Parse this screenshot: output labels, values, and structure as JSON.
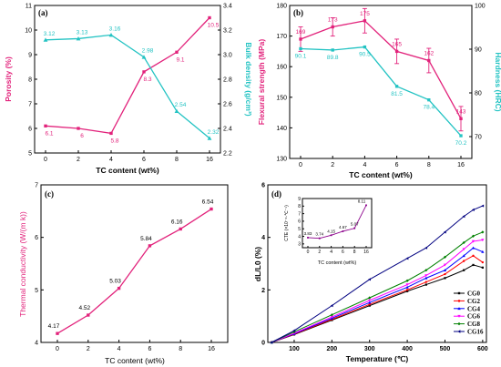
{
  "chart_data": [
    {
      "panel": "(a)",
      "type": "line",
      "categories": [
        "0",
        "2",
        "4",
        "6",
        "8",
        "16"
      ],
      "xlabel": "TC content (wt%)",
      "ylabel_left": "Porosity (%)",
      "ylabel_right": "Bulk density (g/cm³)",
      "ylim_left": [
        5,
        11
      ],
      "ylim_right": [
        2.2,
        3.4
      ],
      "yticks_left": [
        "5",
        "6",
        "7",
        "8",
        "9",
        "10",
        "11"
      ],
      "yticks_right": [
        "2.2",
        "2.4",
        "2.6",
        "2.8",
        "3.0",
        "3.2",
        "3.4"
      ],
      "series": [
        {
          "axis": "left",
          "color": "#e2227b",
          "marker": "square",
          "values": [
            6.1,
            6.0,
            5.8,
            8.3,
            9.1,
            10.5
          ],
          "labels": [
            "6.1",
            "6",
            "5.8",
            "8.3",
            "9.1",
            "10.5"
          ],
          "label_side": "below"
        },
        {
          "axis": "right",
          "color": "#23c3c3",
          "marker": "triangle",
          "values": [
            3.12,
            3.13,
            3.16,
            2.98,
            2.54,
            2.32
          ],
          "labels": [
            "3.12",
            "3.13",
            "3.16",
            "2.98",
            "2.54",
            "2.32"
          ],
          "label_side": "above"
        }
      ]
    },
    {
      "panel": "(b)",
      "type": "line",
      "categories": [
        "0",
        "2",
        "4",
        "6",
        "8",
        "16"
      ],
      "xlabel": "TC content (wt%)",
      "ylabel_left": "Flexural strength (MPa)",
      "ylabel_right": "Hardness (HRC)",
      "ylim_left": [
        130,
        180
      ],
      "ylim_right": [
        65,
        100
      ],
      "yticks_left": [
        "130",
        "140",
        "150",
        "160",
        "170",
        "180"
      ],
      "yticks_right": [
        "70",
        "80",
        "90",
        "100"
      ],
      "series": [
        {
          "axis": "left",
          "color": "#e2227b",
          "marker": "square",
          "values": [
            169,
            173,
            175,
            165,
            162,
            143
          ],
          "errors": [
            4,
            3,
            4,
            4,
            4,
            4
          ],
          "labels": [
            "169",
            "173",
            "175",
            "165",
            "162",
            "143"
          ],
          "label_side": "above"
        },
        {
          "axis": "right",
          "color": "#23c3c3",
          "marker": "square",
          "values": [
            90.1,
            89.8,
            90.5,
            81.5,
            78.4,
            70.2
          ],
          "labels": [
            "90.1",
            "89.8",
            "90.5",
            "81.5",
            "78.4",
            "70.2"
          ],
          "label_side": "below"
        }
      ]
    },
    {
      "panel": "(c)",
      "type": "line",
      "categories": [
        "0",
        "2",
        "4",
        "6",
        "8",
        "16"
      ],
      "xlabel": "TC content (wt%)",
      "ylabel": "Thermal conductivity (W/(m k))",
      "ylim": [
        4,
        7
      ],
      "yticks": [
        "4",
        "5",
        "6",
        "7"
      ],
      "series": [
        {
          "color": "#e2227b",
          "marker": "square",
          "values": [
            4.17,
            4.52,
            5.03,
            5.84,
            6.16,
            6.54
          ],
          "labels": [
            "4.17",
            "4.52",
            "5.03",
            "5.84",
            "6.16",
            "6.54"
          ],
          "label_side": "above"
        }
      ]
    },
    {
      "panel": "(d)",
      "type": "line",
      "xlabel": "Temperature (℃)",
      "ylabel": "dL/L0 (%)",
      "xlim": [
        30,
        610
      ],
      "ylim": [
        0,
        6
      ],
      "xticks": [
        100,
        200,
        300,
        400,
        500,
        600
      ],
      "yticks": [
        0,
        2,
        4,
        6
      ],
      "legend_position": "bottom-right",
      "series": [
        {
          "name": "CG0",
          "color": "#000000",
          "marker": "square",
          "x": [
            40,
            100,
            200,
            300,
            400,
            450,
            500,
            550,
            575,
            600
          ],
          "y": [
            0.0,
            0.3,
            0.85,
            1.4,
            1.95,
            2.2,
            2.45,
            2.75,
            2.95,
            2.85
          ]
        },
        {
          "name": "CG2",
          "color": "#ff0000",
          "marker": "circle",
          "x": [
            40,
            100,
            200,
            300,
            400,
            450,
            500,
            550,
            575,
            600
          ],
          "y": [
            0.0,
            0.31,
            0.88,
            1.45,
            2.0,
            2.3,
            2.6,
            3.1,
            3.3,
            3.05
          ]
        },
        {
          "name": "CG4",
          "color": "#0000ff",
          "marker": "triangle",
          "x": [
            40,
            100,
            200,
            300,
            400,
            450,
            500,
            550,
            575,
            600
          ],
          "y": [
            0.0,
            0.33,
            0.92,
            1.52,
            2.1,
            2.45,
            2.75,
            3.3,
            3.6,
            3.45
          ]
        },
        {
          "name": "CG6",
          "color": "#ff00ff",
          "marker": "triangle-down",
          "x": [
            40,
            100,
            200,
            300,
            400,
            450,
            500,
            550,
            575,
            600
          ],
          "y": [
            0.0,
            0.35,
            0.97,
            1.6,
            2.2,
            2.55,
            2.95,
            3.55,
            3.85,
            3.9
          ]
        },
        {
          "name": "CG8",
          "color": "#008000",
          "marker": "diamond",
          "x": [
            40,
            100,
            200,
            300,
            400,
            450,
            500,
            550,
            575,
            600
          ],
          "y": [
            0.0,
            0.4,
            1.05,
            1.7,
            2.35,
            2.75,
            3.25,
            3.8,
            4.05,
            4.2
          ]
        },
        {
          "name": "CG16",
          "color": "#000080",
          "marker": "triangle-left",
          "x": [
            40,
            100,
            200,
            300,
            400,
            450,
            500,
            550,
            575,
            600
          ],
          "y": [
            0.0,
            0.45,
            1.4,
            2.4,
            3.2,
            3.6,
            4.2,
            4.8,
            5.05,
            5.2
          ]
        }
      ],
      "inset": {
        "xlabel": "TC content (wt%)",
        "ylabel": "CTE (×10⁻⁶·℃⁻¹)",
        "categories": [
          "0",
          "2",
          "4",
          "6",
          "8",
          "16"
        ],
        "ylim": [
          2.5,
          9
        ],
        "yticks": [
          "3",
          "4",
          "5",
          "6",
          "7",
          "8",
          "9"
        ],
        "color": "#8b008b",
        "values": [
          3.83,
          3.74,
          4.15,
          4.67,
          5.07,
          8.11
        ],
        "labels": [
          "3.83",
          "3.74",
          "4.15",
          "4.67",
          "5.07",
          "8.11"
        ]
      }
    }
  ]
}
